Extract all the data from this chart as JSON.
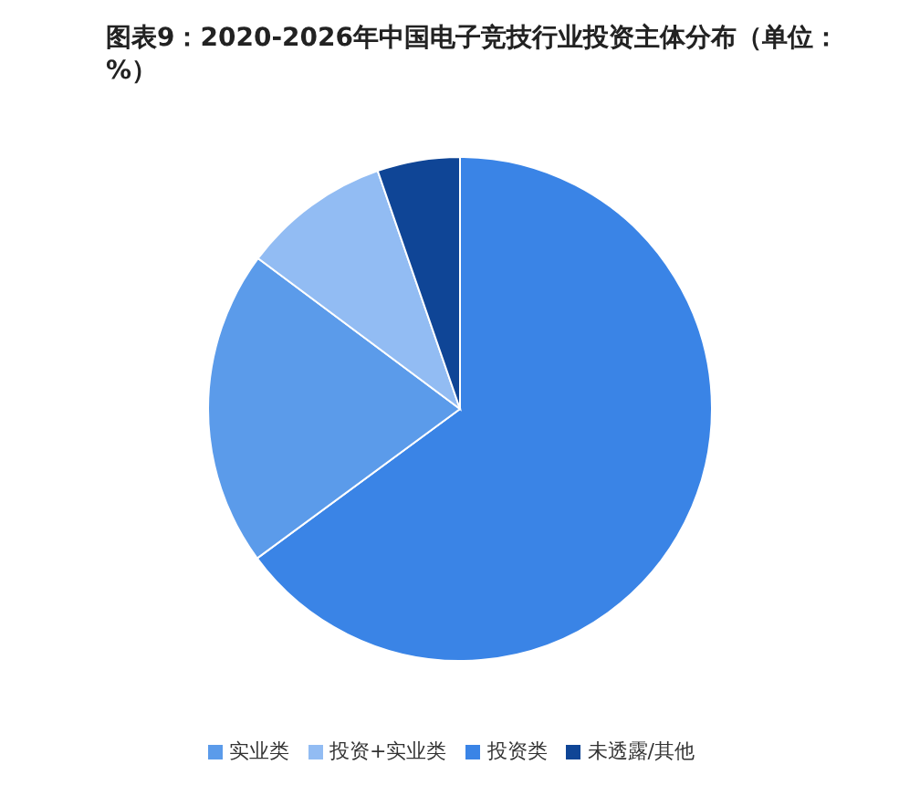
{
  "chart_data": {
    "type": "pie",
    "title": "图表9：2020-2026年中国电子竞技行业投资主体分布（单位：%）",
    "categories": [
      "投资类",
      "实业类",
      "投资+实业类",
      "未透露/其他"
    ],
    "values": [
      64.9,
      20.3,
      9.5,
      5.3
    ],
    "colors": [
      "#3a84e6",
      "#5b9bea",
      "#92bcf3",
      "#0f4596"
    ],
    "legend": "bottom"
  }
}
